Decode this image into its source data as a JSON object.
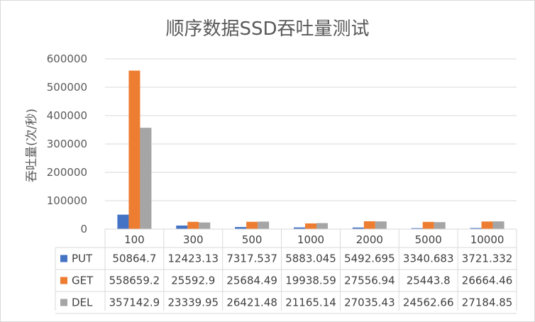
{
  "chart_data": {
    "type": "bar",
    "title": "顺序数据SSD吞吐量测试",
    "ylabel": "吞吐量(次/秒)",
    "xlabel": "",
    "ylim": [
      0,
      600000
    ],
    "yticks": [
      "0",
      "100000",
      "200000",
      "300000",
      "400000",
      "500000",
      "600000"
    ],
    "categories": [
      "100",
      "300",
      "500",
      "1000",
      "2000",
      "5000",
      "10000"
    ],
    "grid": true,
    "legend": "data-table",
    "series": [
      {
        "name": "PUT",
        "color": "#4472c4",
        "values": [
          50864.7,
          12423.13,
          7317.537,
          5883.045,
          5492.695,
          3340.683,
          3721.332
        ],
        "labels": [
          "50864.7",
          "12423.13",
          "7317.537",
          "5883.045",
          "5492.695",
          "3340.683",
          "3721.332"
        ]
      },
      {
        "name": "GET",
        "color": "#ed7d31",
        "values": [
          558659.2,
          25592.9,
          25684.49,
          19938.59,
          27556.94,
          25443.8,
          26664.46
        ],
        "labels": [
          "558659.2",
          "25592.9",
          "25684.49",
          "19938.59",
          "27556.94",
          "25443.8",
          "26664.46"
        ]
      },
      {
        "name": "DEL",
        "color": "#a5a5a5",
        "values": [
          357142.9,
          23339.95,
          26421.48,
          21165.14,
          27035.43,
          24562.66,
          27184.85
        ],
        "labels": [
          "357142.9",
          "23339.95",
          "26421.48",
          "21165.14",
          "27035.43",
          "24562.66",
          "27184.85"
        ]
      }
    ]
  }
}
